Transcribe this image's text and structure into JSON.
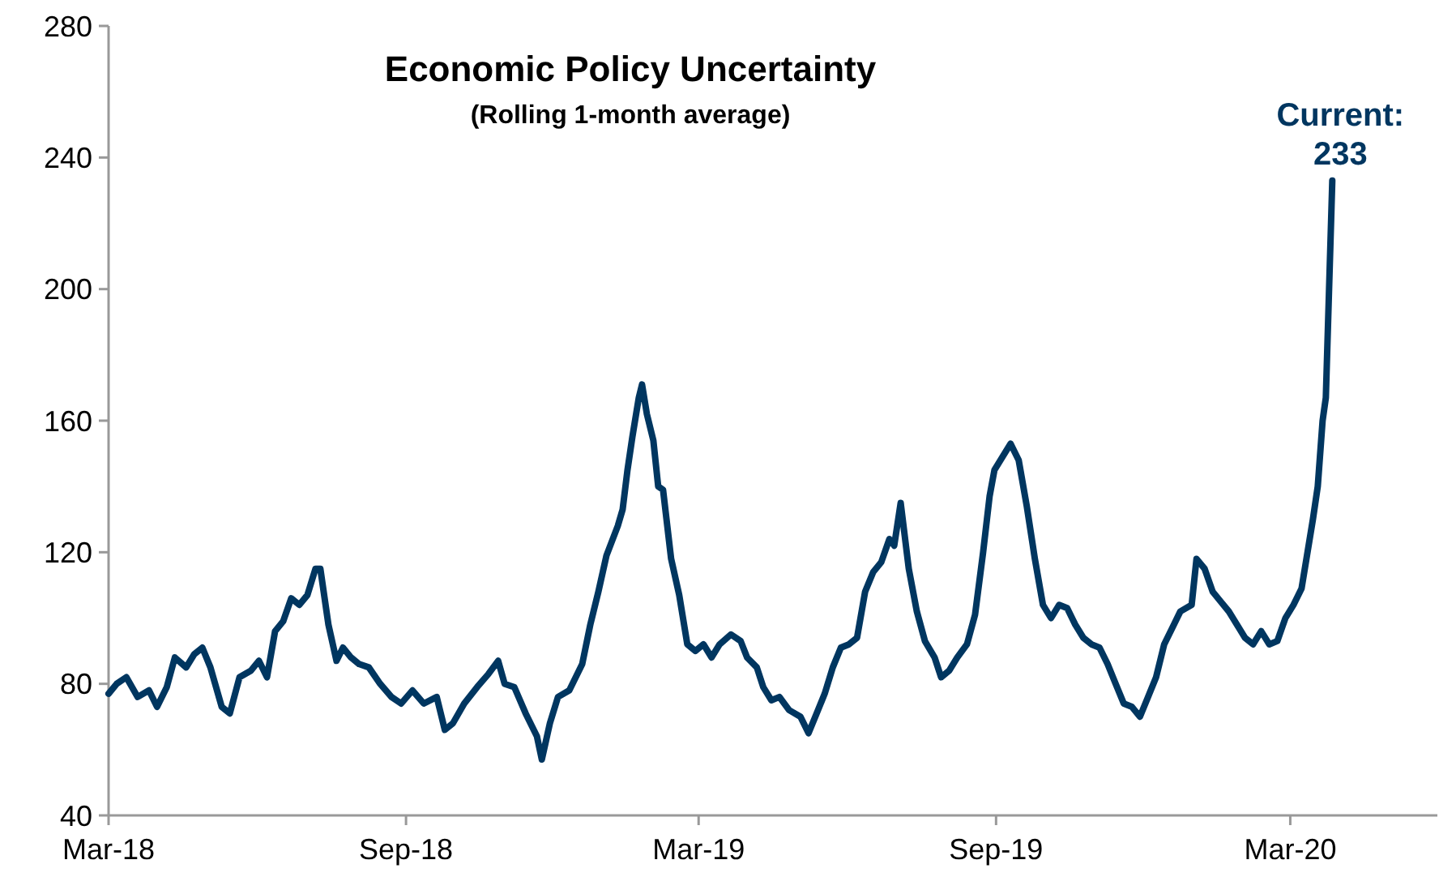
{
  "chart_data": {
    "type": "line",
    "title": "Economic Policy Uncertainty",
    "subtitle": "(Rolling 1-month average)",
    "annotations": [
      {
        "text": "Current: 233",
        "x": "2020-03-27",
        "y": 233
      }
    ],
    "xlim": [
      "2018-03-01",
      "2020-05-31"
    ],
    "xticks": [
      {
        "value": "2018-03-01",
        "label": "Mar-18"
      },
      {
        "value": "2018-09-01",
        "label": "Sep-18"
      },
      {
        "value": "2019-03-01",
        "label": "Mar-19"
      },
      {
        "value": "2019-09-01",
        "label": "Sep-19"
      },
      {
        "value": "2020-03-01",
        "label": "Mar-20"
      }
    ],
    "ylim": [
      40,
      280
    ],
    "yticks": [
      40,
      80,
      120,
      160,
      200,
      240,
      280
    ],
    "grid": false,
    "line_style": "solid",
    "marker": "none",
    "series": [
      {
        "color": "#003660",
        "x": [
          "2018-03-01",
          "2018-03-06",
          "2018-03-12",
          "2018-03-19",
          "2018-03-26",
          "2018-03-31",
          "2018-04-06",
          "2018-04-11",
          "2018-04-18",
          "2018-04-23",
          "2018-04-28",
          "2018-05-03",
          "2018-05-10",
          "2018-05-15",
          "2018-05-21",
          "2018-05-28",
          "2018-06-02",
          "2018-06-07",
          "2018-06-12",
          "2018-06-17",
          "2018-06-22",
          "2018-06-27",
          "2018-07-02",
          "2018-07-07",
          "2018-07-10",
          "2018-07-15",
          "2018-07-20",
          "2018-07-24",
          "2018-07-29",
          "2018-08-03",
          "2018-08-09",
          "2018-08-16",
          "2018-08-23",
          "2018-08-29",
          "2018-09-05",
          "2018-09-12",
          "2018-09-20",
          "2018-09-25",
          "2018-09-30",
          "2018-10-07",
          "2018-10-15",
          "2018-10-22",
          "2018-10-28",
          "2018-11-01",
          "2018-11-07",
          "2018-11-14",
          "2018-11-21",
          "2018-11-24",
          "2018-11-29",
          "2018-12-04",
          "2018-12-11",
          "2018-12-19",
          "2018-12-24",
          "2018-12-29",
          "2019-01-03",
          "2019-01-10",
          "2019-01-13",
          "2019-01-16",
          "2019-01-19",
          "2019-01-23",
          "2019-01-25",
          "2019-01-28",
          "2019-02-01",
          "2019-02-04",
          "2019-02-07",
          "2019-02-12",
          "2019-02-17",
          "2019-02-22",
          "2019-02-27",
          "2019-03-04",
          "2019-03-09",
          "2019-03-14",
          "2019-03-21",
          "2019-03-27",
          "2019-03-31",
          "2019-04-06",
          "2019-04-10",
          "2019-04-15",
          "2019-04-20",
          "2019-04-26",
          "2019-05-03",
          "2019-05-08",
          "2019-05-13",
          "2019-05-18",
          "2019-05-23",
          "2019-05-28",
          "2019-06-02",
          "2019-06-07",
          "2019-06-12",
          "2019-06-17",
          "2019-06-22",
          "2019-06-27",
          "2019-06-30",
          "2019-07-04",
          "2019-07-09",
          "2019-07-14",
          "2019-07-19",
          "2019-07-25",
          "2019-07-29",
          "2019-08-03",
          "2019-08-08",
          "2019-08-14",
          "2019-08-19",
          "2019-08-24",
          "2019-08-28",
          "2019-08-31",
          "2019-09-05",
          "2019-09-10",
          "2019-09-15",
          "2019-09-20",
          "2019-09-25",
          "2019-09-30",
          "2019-10-05",
          "2019-10-10",
          "2019-10-15",
          "2019-10-20",
          "2019-10-25",
          "2019-10-30",
          "2019-11-04",
          "2019-11-09",
          "2019-11-14",
          "2019-11-19",
          "2019-11-24",
          "2019-11-29",
          "2019-12-04",
          "2019-12-09",
          "2019-12-14",
          "2019-12-19",
          "2019-12-24",
          "2019-12-31",
          "2020-01-03",
          "2020-01-08",
          "2020-01-13",
          "2020-01-18",
          "2020-01-23",
          "2020-01-28",
          "2020-02-02",
          "2020-02-07",
          "2020-02-12",
          "2020-02-17",
          "2020-02-22",
          "2020-02-27",
          "2020-03-03",
          "2020-03-08",
          "2020-03-11",
          "2020-03-15",
          "2020-03-18",
          "2020-03-21",
          "2020-03-23",
          "2020-03-25",
          "2020-03-27"
        ],
        "values": [
          77,
          80,
          82,
          76,
          78,
          73,
          79,
          88,
          85,
          89,
          91,
          85,
          73,
          71,
          82,
          84,
          87,
          82,
          96,
          99,
          106,
          104,
          107,
          115,
          115,
          98,
          87,
          91,
          88,
          86,
          85,
          80,
          76,
          74,
          78,
          74,
          76,
          66,
          68,
          74,
          79,
          83,
          87,
          80,
          79,
          71,
          64,
          57,
          68,
          76,
          78,
          86,
          98,
          108,
          119,
          128,
          133,
          145,
          155,
          167,
          171,
          162,
          154,
          140,
          139,
          118,
          107,
          92,
          90,
          92,
          88,
          92,
          95,
          93,
          88,
          85,
          79,
          75,
          76,
          72,
          70,
          65,
          71,
          77,
          85,
          91,
          92,
          94,
          108,
          114,
          117,
          124,
          122,
          135,
          115,
          102,
          93,
          88,
          82,
          84,
          88,
          92,
          101,
          120,
          137,
          145,
          149,
          153,
          148,
          134,
          118,
          104,
          100,
          104,
          103,
          98,
          94,
          92,
          91,
          86,
          80,
          74,
          73,
          70,
          76,
          82,
          92,
          97,
          102,
          104,
          118,
          115,
          108,
          105,
          102,
          98,
          94,
          92,
          96,
          92,
          93,
          100,
          104,
          109,
          118,
          130,
          140,
          160,
          167,
          200,
          233
        ]
      }
    ]
  }
}
